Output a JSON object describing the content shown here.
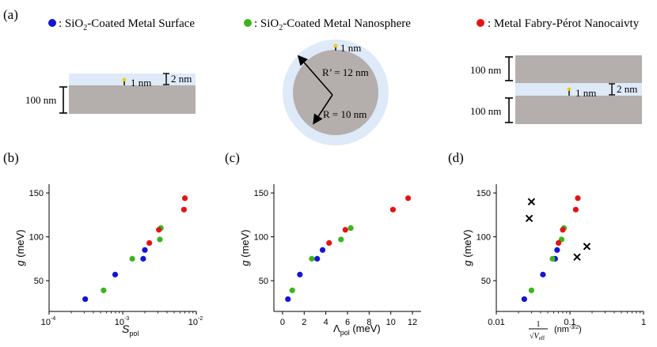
{
  "colors": {
    "blue": "#1414d2",
    "green": "#3cb41e",
    "red": "#e11414",
    "metal": "#b4aeac",
    "oxide": "#deeaf8",
    "emitter_dot": "#f0c814"
  },
  "legend": {
    "blue": {
      "text_pre": ": SiO",
      "sub": "2",
      "text_post": "-Coated Metal Surface"
    },
    "green": {
      "text_pre": ": SiO",
      "sub": "2",
      "text_post": "-Coated Metal Nanosphere"
    },
    "red": {
      "text": ": Metal Fabry-Pérot Nanocaivty"
    }
  },
  "panel_labels": {
    "a": "(a)",
    "b": "(b)",
    "c": "(c)",
    "d": "(d)"
  },
  "schematic": {
    "surface": {
      "metal_thickness": "100 nm",
      "oxide_thickness": "2 nm",
      "emitter_gap": "1 nm"
    },
    "sphere": {
      "outer_radius": "R’ = 12 nm",
      "inner_radius": "R = 10 nm",
      "emitter_gap": "1 nm"
    },
    "cavity": {
      "top_metal": "100 nm",
      "bottom_metal": "100 nm",
      "gap": "2 nm",
      "emitter_gap": "1 nm"
    }
  },
  "chart_data": [
    {
      "id": "b",
      "type": "scatter",
      "xscale": "log",
      "xlim": [
        0.0001,
        0.01
      ],
      "ylim": [
        15,
        160
      ],
      "xticks": [
        "10",
        "10",
        "10"
      ],
      "xtick_exps": [
        "-4",
        "-3",
        "-2"
      ],
      "xtick_vals": [
        0.0001,
        0.001,
        0.01
      ],
      "yticks": [
        50,
        100,
        150
      ],
      "xlabel": "S",
      "xlabel_sub": "pol",
      "ylabel": "g (meV)",
      "series": [
        {
          "name": "SiO2-Coated Metal Surface",
          "color": "blue",
          "points": [
            [
              0.00031,
              29
            ],
            [
              0.00079,
              57
            ],
            [
              0.0019,
              75
            ],
            [
              0.002,
              85
            ]
          ]
        },
        {
          "name": "SiO2-Coated Metal Nanosphere",
          "color": "green",
          "points": [
            [
              0.00055,
              39
            ],
            [
              0.00135,
              75
            ],
            [
              0.0032,
              97
            ],
            [
              0.0033,
              110
            ]
          ]
        },
        {
          "name": "Metal Fabry-Pérot Nanocavity",
          "color": "red",
          "points": [
            [
              0.0023,
              93
            ],
            [
              0.0031,
              108
            ],
            [
              0.0068,
              131
            ],
            [
              0.007,
              144
            ]
          ]
        }
      ]
    },
    {
      "id": "c",
      "type": "scatter",
      "xscale": "linear",
      "xlim": [
        -0.8,
        12.8
      ],
      "ylim": [
        15,
        160
      ],
      "xticks": [
        "0",
        "2",
        "4",
        "6",
        "8",
        "10",
        "12"
      ],
      "xtick_vals": [
        0,
        2,
        4,
        6,
        8,
        10,
        12
      ],
      "yticks": [
        50,
        100,
        150
      ],
      "xlabel": "Λ",
      "xlabel_sub": "pol",
      "xlabel_unit": " (meV)",
      "ylabel": "g (meV)",
      "series": [
        {
          "name": "SiO2-Coated Metal Surface",
          "color": "blue",
          "points": [
            [
              0.5,
              29
            ],
            [
              1.6,
              57
            ],
            [
              3.2,
              75
            ],
            [
              3.7,
              85
            ]
          ]
        },
        {
          "name": "SiO2-Coated Metal Nanosphere",
          "color": "green",
          "points": [
            [
              0.9,
              39
            ],
            [
              2.7,
              75
            ],
            [
              5.4,
              97
            ],
            [
              6.3,
              110
            ]
          ]
        },
        {
          "name": "Metal Fabry-Pérot Nanocavity",
          "color": "red",
          "points": [
            [
              4.3,
              93
            ],
            [
              5.8,
              108
            ],
            [
              10.2,
              131
            ],
            [
              11.6,
              144
            ]
          ]
        }
      ]
    },
    {
      "id": "d",
      "type": "scatter",
      "xscale": "log",
      "xlim": [
        0.01,
        1
      ],
      "ylim": [
        15,
        160
      ],
      "xticks": [
        "0.01",
        "0.1",
        "1"
      ],
      "xtick_vals": [
        0.01,
        0.1,
        1
      ],
      "yticks": [
        50,
        100,
        150
      ],
      "xlabel_num": "1",
      "xlabel_den": "√V",
      "xlabel_den_sub": "eff",
      "xlabel_unit": "(nm",
      "xlabel_unit_sup": "-3/2",
      "xlabel_unit_close": ")",
      "ylabel": "g (meV)",
      "series": [
        {
          "name": "SiO2-Coated Metal Surface",
          "color": "blue",
          "points": [
            [
              0.024,
              29
            ],
            [
              0.043,
              57
            ],
            [
              0.063,
              75
            ],
            [
              0.067,
              85
            ]
          ]
        },
        {
          "name": "SiO2-Coated Metal Nanosphere",
          "color": "green",
          "points": [
            [
              0.03,
              39
            ],
            [
              0.058,
              75
            ],
            [
              0.077,
              97
            ],
            [
              0.083,
              110
            ]
          ]
        },
        {
          "name": "Metal Fabry-Pérot Nanocavity",
          "color": "red",
          "points": [
            [
              0.07,
              93
            ],
            [
              0.08,
              108
            ],
            [
              0.12,
              131
            ],
            [
              0.128,
              144
            ]
          ]
        },
        {
          "name": "crosses",
          "color": "black",
          "marker": "x",
          "points": [
            [
              0.03,
              140
            ],
            [
              0.028,
              121
            ],
            [
              0.17,
              89
            ],
            [
              0.125,
              77
            ]
          ]
        }
      ]
    }
  ]
}
